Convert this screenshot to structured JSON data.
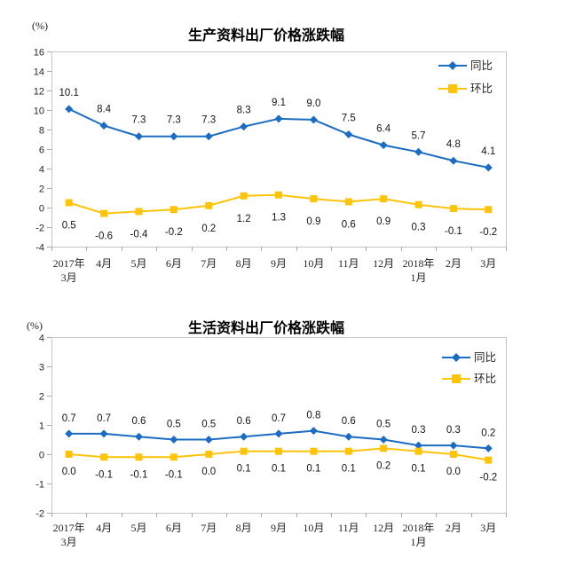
{
  "chart_data": [
    {
      "type": "line",
      "title": "生产资料出厂价格涨跌幅",
      "unit": "(%)",
      "ylabel": "(%)",
      "xlabel": "",
      "ylim": [
        -4,
        16
      ],
      "ytick_step": 2,
      "grid": false,
      "legend_position": "top-right",
      "axis_color": "#C6C6C6",
      "categories": [
        "2017年\n3月",
        "4月",
        "5月",
        "6月",
        "7月",
        "8月",
        "9月",
        "10月",
        "11月",
        "12月",
        "2018年\n1月",
        "2月",
        "3月"
      ],
      "series": [
        {
          "name": "同比",
          "marker": "diamond",
          "color": "#1B6CC2",
          "values": [
            10.1,
            8.4,
            7.3,
            7.3,
            7.3,
            8.3,
            9.1,
            9.0,
            7.5,
            6.4,
            5.7,
            4.8,
            4.1
          ]
        },
        {
          "name": "环比",
          "marker": "square",
          "color": "#FFC408",
          "values": [
            0.5,
            -0.6,
            -0.4,
            -0.2,
            0.2,
            1.2,
            1.3,
            0.9,
            0.6,
            0.9,
            0.3,
            -0.1,
            -0.2
          ]
        }
      ]
    },
    {
      "type": "line",
      "title": "生活资料出厂价格涨跌幅",
      "unit": "(%)",
      "ylabel": "(%)",
      "xlabel": "",
      "ylim": [
        -2,
        4
      ],
      "ytick_step": 1,
      "grid": false,
      "legend_position": "top-right",
      "axis_color": "#C6C6C6",
      "categories": [
        "2017年\n3月",
        "4月",
        "5月",
        "6月",
        "7月",
        "8月",
        "9月",
        "10月",
        "11月",
        "12月",
        "2018年\n1月",
        "2月",
        "3月"
      ],
      "series": [
        {
          "name": "同比",
          "marker": "diamond",
          "color": "#1B6CC2",
          "values": [
            0.7,
            0.7,
            0.6,
            0.5,
            0.5,
            0.6,
            0.7,
            0.8,
            0.6,
            0.5,
            0.3,
            0.3,
            0.2
          ]
        },
        {
          "name": "环比",
          "marker": "square",
          "color": "#FFC408",
          "values": [
            0.0,
            -0.1,
            -0.1,
            -0.1,
            0.0,
            0.1,
            0.1,
            0.1,
            0.1,
            0.2,
            0.1,
            0.0,
            -0.2
          ]
        }
      ]
    }
  ]
}
